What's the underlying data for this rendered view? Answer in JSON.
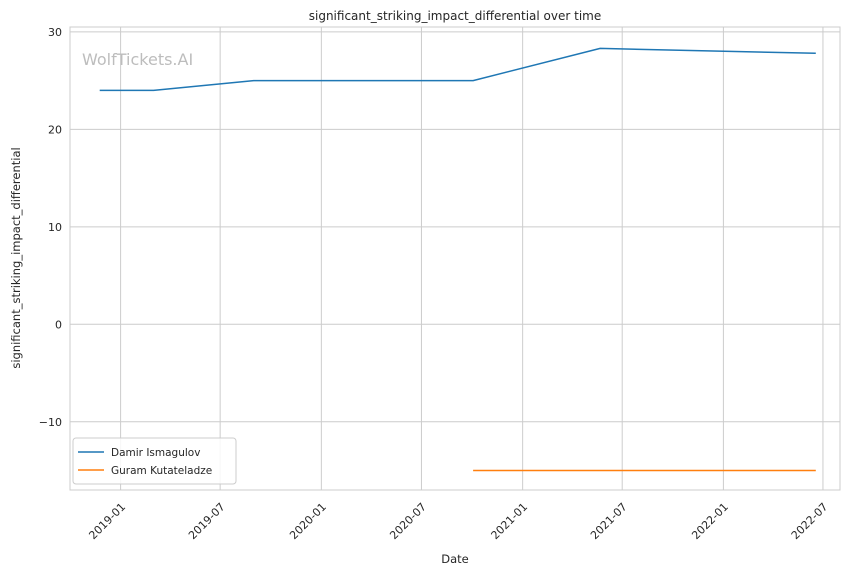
{
  "chart_data": {
    "type": "line",
    "title": "significant_striking_impact_differential over time",
    "xlabel": "Date",
    "ylabel": "significant_striking_impact_differential",
    "watermark": "WolfTickets.AI",
    "xlim": [
      "2018-10-01",
      "2022-08-01"
    ],
    "ylim": [
      -17,
      30.5
    ],
    "x_ticks": [
      "2019-01",
      "2019-07",
      "2020-01",
      "2020-07",
      "2021-01",
      "2021-07",
      "2022-01",
      "2022-07"
    ],
    "y_ticks": [
      -10,
      0,
      10,
      20,
      30
    ],
    "y_tick_labels": [
      "−10",
      "0",
      "10",
      "20",
      "30"
    ],
    "grid": true,
    "legend_position": "lower-left",
    "series": [
      {
        "name": "Damir Ismagulov",
        "color": "#1f77b4",
        "points": [
          {
            "x": "2018-11-24",
            "y": 24
          },
          {
            "x": "2019-03-02",
            "y": 24
          },
          {
            "x": "2019-08-31",
            "y": 25
          },
          {
            "x": "2020-10-03",
            "y": 25
          },
          {
            "x": "2021-05-22",
            "y": 28.3
          },
          {
            "x": "2022-06-18",
            "y": 27.8
          }
        ]
      },
      {
        "name": "Guram Kutateladze",
        "color": "#ff7f0e",
        "points": [
          {
            "x": "2020-10-03",
            "y": -15
          },
          {
            "x": "2022-06-18",
            "y": -15
          }
        ]
      }
    ]
  }
}
